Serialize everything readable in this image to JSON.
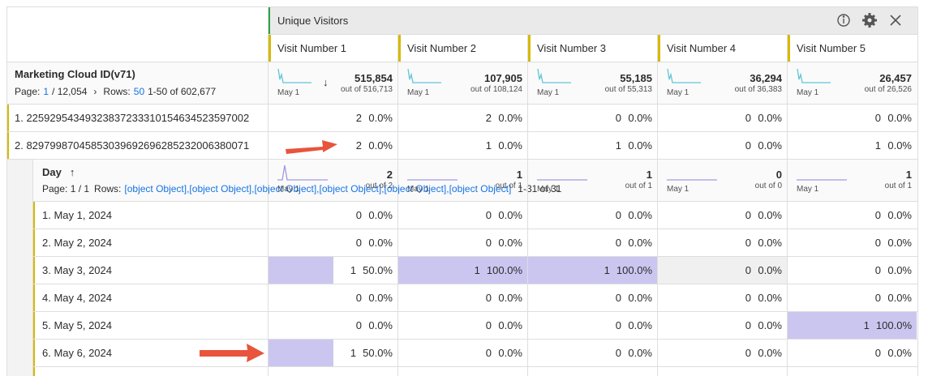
{
  "header": {
    "metric_group": "Unique Visitors",
    "columns": [
      "Visit Number 1",
      "Visit Number 2",
      "Visit Number 3",
      "Visit Number 4",
      "Visit Number 5"
    ]
  },
  "dimension": {
    "name": "Marketing Cloud ID(v71)",
    "page_label": "Page:",
    "page": "1",
    "page_total": "/ 12,054",
    "next": "›",
    "rows_label": "Rows:",
    "rows": "50",
    "range": "1-50 of 602,677"
  },
  "totals": [
    {
      "value": "515,854",
      "out_of": "out of 516,713",
      "spark_label": "May 1",
      "sort": "↓"
    },
    {
      "value": "107,905",
      "out_of": "out of 108,124",
      "spark_label": "May 1"
    },
    {
      "value": "55,185",
      "out_of": "out of 55,313",
      "spark_label": "May 1"
    },
    {
      "value": "36,294",
      "out_of": "out of 36,383",
      "spark_label": "May 1"
    },
    {
      "value": "26,457",
      "out_of": "out of 26,526",
      "spark_label": "May 1"
    }
  ],
  "rows": [
    {
      "label": "1.  22592954349323837233310154634523597002",
      "cells": [
        {
          "count": "2",
          "pct": "0.0%"
        },
        {
          "count": "2",
          "pct": "0.0%"
        },
        {
          "count": "0",
          "pct": "0.0%"
        },
        {
          "count": "0",
          "pct": "0.0%"
        },
        {
          "count": "0",
          "pct": "0.0%"
        }
      ]
    },
    {
      "label": "2.  82979987045853039692696285232006380071",
      "cells": [
        {
          "count": "2",
          "pct": "0.0%"
        },
        {
          "count": "1",
          "pct": "0.0%"
        },
        {
          "count": "1",
          "pct": "0.0%"
        },
        {
          "count": "0",
          "pct": "0.0%"
        },
        {
          "count": "1",
          "pct": "0.0%"
        }
      ]
    }
  ],
  "breakdown": {
    "name": "Day",
    "sort": "↑",
    "page_text": "Page: 1 / 1",
    "rows_label": "Rows:",
    "rows": [
      {
        "label": "1.  May 1, 2024",
        "cells": [
          {
            "count": "0",
            "pct": "0.0%"
          },
          {
            "count": "0",
            "pct": "0.0%"
          },
          {
            "count": "0",
            "pct": "0.0%"
          },
          {
            "count": "0",
            "pct": "0.0%"
          },
          {
            "count": "0",
            "pct": "0.0%"
          }
        ]
      },
      {
        "label": "2.  May 2, 2024",
        "cells": [
          {
            "count": "0",
            "pct": "0.0%"
          },
          {
            "count": "0",
            "pct": "0.0%"
          },
          {
            "count": "0",
            "pct": "0.0%"
          },
          {
            "count": "0",
            "pct": "0.0%"
          },
          {
            "count": "0",
            "pct": "0.0%"
          }
        ]
      },
      {
        "label": "3.  May 3, 2024",
        "cells": [
          {
            "count": "1",
            "pct": "50.0%"
          },
          {
            "count": "1",
            "pct": "100.0%"
          },
          {
            "count": "1",
            "pct": "100.0%"
          },
          {
            "count": "0",
            "pct": "0.0%"
          },
          {
            "count": "0",
            "pct": "0.0%"
          }
        ]
      },
      {
        "label": "4.  May 4, 2024",
        "cells": [
          {
            "count": "0",
            "pct": "0.0%"
          },
          {
            "count": "0",
            "pct": "0.0%"
          },
          {
            "count": "0",
            "pct": "0.0%"
          },
          {
            "count": "0",
            "pct": "0.0%"
          },
          {
            "count": "0",
            "pct": "0.0%"
          }
        ]
      },
      {
        "label": "5.  May 5, 2024",
        "cells": [
          {
            "count": "0",
            "pct": "0.0%"
          },
          {
            "count": "0",
            "pct": "0.0%"
          },
          {
            "count": "0",
            "pct": "0.0%"
          },
          {
            "count": "0",
            "pct": "0.0%"
          },
          {
            "count": "1",
            "pct": "100.0%"
          }
        ]
      },
      {
        "label": "6.  May 6, 2024",
        "cells": [
          {
            "count": "1",
            "pct": "50.0%"
          },
          {
            "count": "0",
            "pct": "0.0%"
          },
          {
            "count": "0",
            "pct": "0.0%"
          },
          {
            "count": "0",
            "pct": "0.0%"
          },
          {
            "count": "0",
            "pct": "0.0%"
          }
        ]
      }
    ],
    "range": "1-31 of 31",
    "totals": [
      {
        "value": "2",
        "out_of": "out of 2",
        "spark_label": "May 1"
      },
      {
        "value": "1",
        "out_of": "out of 1",
        "spark_label": "May 1"
      },
      {
        "value": "1",
        "out_of": "out of 1",
        "spark_label": "May 1"
      },
      {
        "value": "0",
        "out_of": "out of 0",
        "spark_label": "May 1"
      },
      {
        "value": "1",
        "out_of": "out of 1",
        "spark_label": "May 1"
      }
    ]
  }
}
